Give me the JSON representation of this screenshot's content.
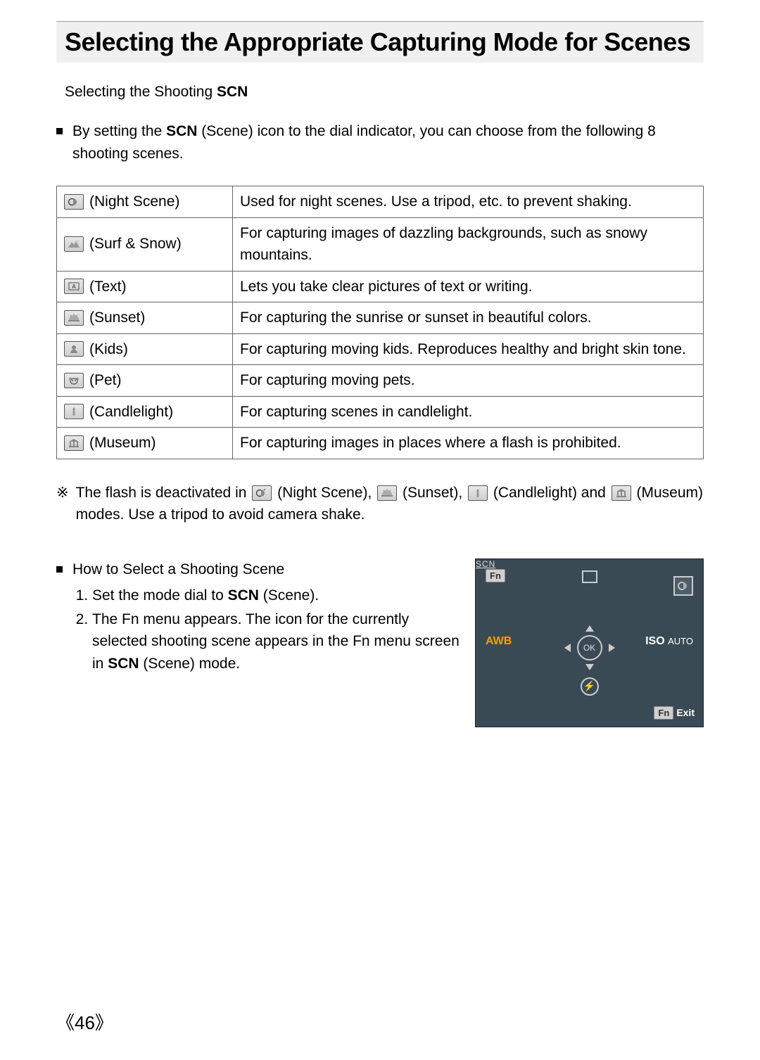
{
  "page": {
    "title": "Selecting the Appropriate Capturing Mode for Scenes",
    "page_number": "《46》"
  },
  "colors": {
    "title_band_bg": "#f0f0f0",
    "lcd_bg": "#3a4a55",
    "awb_color": "#f5a000",
    "table_border": "#666666"
  },
  "section": {
    "heading_prefix": "Selecting the Shooting  ",
    "heading_scn": "SCN"
  },
  "intro": {
    "prefix": "By setting the  ",
    "scn": "SCN",
    "suffix": " (Scene) icon to the dial indicator, you can choose from the  following 8 shooting scenes."
  },
  "scene_table": {
    "rows": [
      {
        "icon": "night-scene-icon",
        "label": "(Night Scene)",
        "desc": "Used for night scenes. Use a tripod, etc. to prevent shaking."
      },
      {
        "icon": "surf-snow-icon",
        "label": "(Surf & Snow)",
        "desc": "For capturing images of dazzling backgrounds, such as snowy mountains."
      },
      {
        "icon": "text-icon",
        "label": "(Text)",
        "desc": "Lets you take clear pictures of text or writing."
      },
      {
        "icon": "sunset-icon",
        "label": "(Sunset)",
        "desc": "For capturing the sunrise or sunset in beautiful colors."
      },
      {
        "icon": "kids-icon",
        "label": "(Kids)",
        "desc": "For capturing moving kids. Reproduces healthy and bright skin tone."
      },
      {
        "icon": "pet-icon",
        "label": "(Pet)",
        "desc": "For capturing moving pets."
      },
      {
        "icon": "candlelight-icon",
        "label": "(Candlelight)",
        "desc": "For capturing scenes in candlelight."
      },
      {
        "icon": "museum-icon",
        "label": "(Museum)",
        "desc": "For capturing images in places where a flash is prohibited."
      }
    ]
  },
  "flash_note": {
    "prefix": "The flash is deactivated in ",
    "m1": " (Night Scene), ",
    "m2": " (Sunset), ",
    "m3": " (Candlelight) and ",
    "m4": " (Museum) modes. Use a tripod to avoid camera shake."
  },
  "howto": {
    "heading": "How to Select a Shooting Scene",
    "step1_prefix": "Set the mode dial to  ",
    "step1_scn": "SCN",
    "step1_suffix": " (Scene).",
    "step2_prefix": "The Fn menu appears. The icon for the currently selected shooting scene appears in the Fn menu screen in  ",
    "step2_scn": "SCN",
    "step2_suffix": "  (Scene) mode."
  },
  "lcd": {
    "fn": "Fn",
    "scn": "SCN",
    "awb": "AWB",
    "iso_label": "ISO",
    "iso_value": "AUTO",
    "ok": "OK",
    "exit": "Exit",
    "flash_glyph": "⚡"
  }
}
